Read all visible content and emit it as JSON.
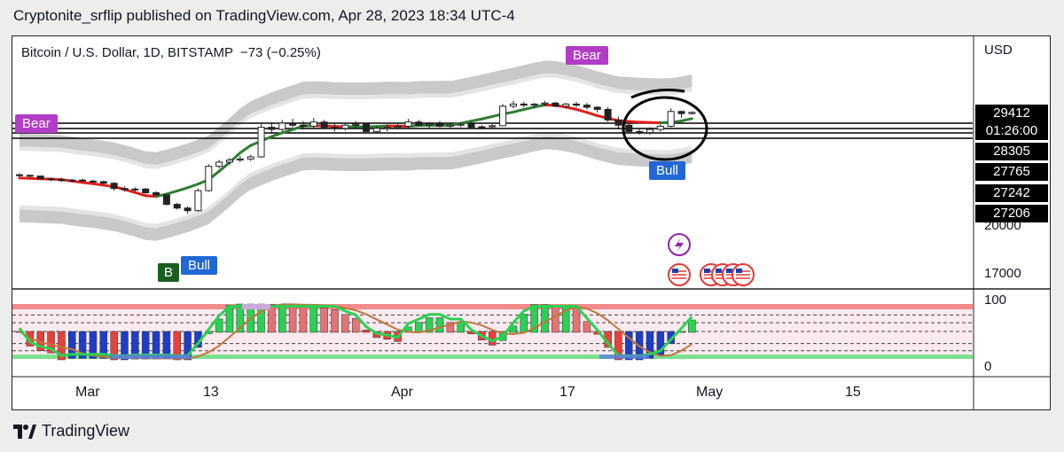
{
  "header": {
    "publisher_line": "Cryptonite_srflip published on TradingView.com, Apr 28, 2023 18:34 UTC-4"
  },
  "symbol": {
    "name": "Bitcoin / U.S. Dollar, 1D, BITSTAMP",
    "change": "−73 (−0.25%)"
  },
  "price_axis": {
    "currency": "USD",
    "ticks": [
      "20000",
      "17000"
    ],
    "last_price": "29412",
    "countdown": "01:26:00",
    "levels": [
      "28305",
      "27765",
      "27242",
      "27206"
    ]
  },
  "oscillator_axis": {
    "ticks": [
      "100",
      "0"
    ]
  },
  "time_axis": {
    "labels": [
      {
        "text": "Mar",
        "bold": true
      },
      {
        "text": "13",
        "bold": false
      },
      {
        "text": "Apr",
        "bold": true
      },
      {
        "text": "17",
        "bold": false
      },
      {
        "text": "May",
        "bold": true
      },
      {
        "text": "15",
        "bold": false
      }
    ]
  },
  "signals": {
    "bear_left": "Bear",
    "bear_top": "Bear",
    "bull_left": "Bull",
    "bull_right": "Bull",
    "b_marker": "B"
  },
  "icons": [
    "lightning-icon",
    "us-flag-icon"
  ],
  "colors": {
    "bull_line": "#2e7d32",
    "bear_line": "#e0201b",
    "band": "#c9c9cc",
    "signal_bear": "#b13dc6",
    "signal_bull": "#2167d6",
    "osc_green": "#2ad152",
    "osc_red": "#e8413a"
  },
  "footer": {
    "brand": "TradingView"
  },
  "chart_data": {
    "type": "candlestick",
    "title": "Bitcoin / U.S. Dollar, 1D, BITSTAMP",
    "x_labels": [
      "Mar",
      "13",
      "Apr",
      "17",
      "May",
      "15"
    ],
    "price_levels": [
      28305,
      27765,
      27242,
      27206
    ],
    "last_price": 29412,
    "candles": [
      [
        23500,
        23650,
        23300,
        23450
      ],
      [
        23450,
        23500,
        23250,
        23380
      ],
      [
        23380,
        23420,
        23050,
        23120
      ],
      [
        23120,
        23250,
        22900,
        23050
      ],
      [
        23050,
        23200,
        22850,
        22950
      ],
      [
        22950,
        23100,
        22800,
        23000
      ],
      [
        23000,
        23150,
        22850,
        22900
      ],
      [
        22900,
        23050,
        22700,
        22850
      ],
      [
        22850,
        22950,
        22600,
        22700
      ],
      [
        22700,
        22800,
        22000,
        22200
      ],
      [
        22200,
        22400,
        21900,
        22100
      ],
      [
        22100,
        22300,
        21900,
        22150
      ],
      [
        22150,
        22250,
        21700,
        21800
      ],
      [
        21800,
        21950,
        21500,
        21600
      ],
      [
        21600,
        21700,
        20600,
        20700
      ],
      [
        20700,
        20850,
        20200,
        20350
      ],
      [
        20350,
        20500,
        19800,
        20100
      ],
      [
        20100,
        22200,
        20000,
        22000
      ],
      [
        22000,
        24500,
        21900,
        24300
      ],
      [
        24300,
        24900,
        24100,
        24700
      ],
      [
        24700,
        25100,
        24500,
        24900
      ],
      [
        24900,
        25300,
        24700,
        25000
      ],
      [
        25000,
        25400,
        24800,
        25200
      ],
      [
        25200,
        28300,
        25100,
        28000
      ],
      [
        28000,
        28500,
        27500,
        27800
      ],
      [
        27800,
        28700,
        27600,
        28400
      ],
      [
        28400,
        28800,
        28000,
        28200
      ],
      [
        28200,
        28600,
        27800,
        28100
      ],
      [
        28100,
        28900,
        27900,
        28500
      ],
      [
        28500,
        28700,
        27800,
        28000
      ],
      [
        28000,
        28300,
        27600,
        27900
      ],
      [
        27900,
        28400,
        27700,
        28200
      ],
      [
        28200,
        28600,
        27900,
        28300
      ],
      [
        28300,
        28400,
        27500,
        27600
      ],
      [
        27600,
        28100,
        27400,
        27900
      ],
      [
        27900,
        28200,
        27600,
        28000
      ],
      [
        28000,
        28300,
        27800,
        28100
      ],
      [
        28100,
        28800,
        27900,
        28500
      ],
      [
        28500,
        28700,
        28100,
        28200
      ],
      [
        28200,
        28500,
        27900,
        28300
      ],
      [
        28300,
        28600,
        28000,
        28100
      ],
      [
        28100,
        28400,
        27900,
        28200
      ],
      [
        28200,
        28500,
        28000,
        28300
      ],
      [
        28300,
        28400,
        27900,
        28000
      ],
      [
        28000,
        28200,
        27800,
        28050
      ],
      [
        28050,
        28300,
        27900,
        28150
      ],
      [
        28150,
        30200,
        28100,
        30000
      ],
      [
        30000,
        30500,
        29800,
        30200
      ],
      [
        30200,
        30400,
        29900,
        30100
      ],
      [
        30100,
        30300,
        29800,
        30200
      ],
      [
        30200,
        30500,
        30000,
        30300
      ],
      [
        30300,
        30400,
        29900,
        30000
      ],
      [
        30000,
        30300,
        29800,
        30200
      ],
      [
        30200,
        30400,
        29900,
        30100
      ],
      [
        30100,
        30300,
        29700,
        29900
      ],
      [
        29900,
        30000,
        29400,
        29700
      ],
      [
        29700,
        29900,
        28500,
        28700
      ],
      [
        28700,
        29000,
        27800,
        28200
      ],
      [
        28200,
        28400,
        27400,
        27600
      ],
      [
        27600,
        27900,
        27300,
        27500
      ],
      [
        27500,
        28000,
        27300,
        27800
      ],
      [
        27800,
        28300,
        27600,
        28100
      ],
      [
        28100,
        29800,
        28000,
        29500
      ],
      [
        29500,
        29600,
        28900,
        29300
      ],
      [
        29300,
        29500,
        29200,
        29412
      ]
    ]
  }
}
